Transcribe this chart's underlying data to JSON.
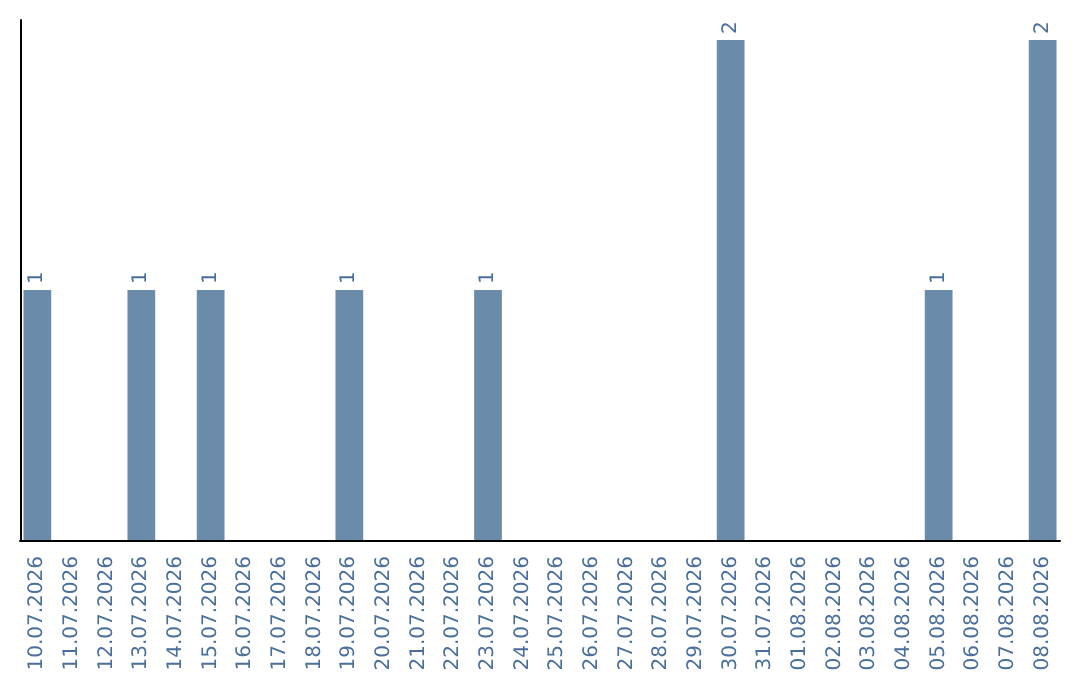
{
  "chart_data": {
    "type": "bar",
    "categories": [
      "10.07.2026",
      "11.07.2026",
      "12.07.2026",
      "13.07.2026",
      "14.07.2026",
      "15.07.2026",
      "16.07.2026",
      "17.07.2026",
      "18.07.2026",
      "19.07.2026",
      "20.07.2026",
      "21.07.2026",
      "22.07.2026",
      "23.07.2026",
      "24.07.2026",
      "25.07.2026",
      "26.07.2026",
      "27.07.2026",
      "28.07.2026",
      "29.07.2026",
      "30.07.2026",
      "31.07.2026",
      "01.08.2026",
      "02.08.2026",
      "03.08.2026",
      "04.08.2026",
      "05.08.2026",
      "06.08.2026",
      "07.08.2026",
      "08.08.2026"
    ],
    "values": [
      1,
      0,
      0,
      1,
      0,
      1,
      0,
      0,
      0,
      1,
      0,
      0,
      0,
      1,
      0,
      0,
      0,
      0,
      0,
      0,
      2,
      0,
      0,
      0,
      0,
      0,
      1,
      0,
      0,
      2
    ],
    "value_labels": [
      "1",
      null,
      null,
      "1",
      null,
      "1",
      null,
      null,
      null,
      "1",
      null,
      null,
      null,
      "1",
      null,
      null,
      null,
      null,
      null,
      null,
      "2",
      null,
      null,
      null,
      null,
      null,
      "1",
      null,
      null,
      "2"
    ],
    "color": "#6a8caa",
    "ylim": [
      0,
      2.08
    ],
    "tick_labels": "x"
  }
}
